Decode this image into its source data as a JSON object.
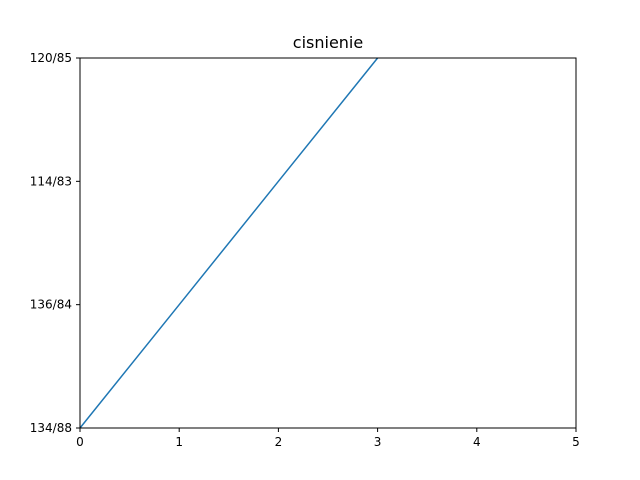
{
  "chart_data": {
    "type": "line",
    "title": "cisnienie",
    "xlabel": "",
    "ylabel": "",
    "x": [
      0,
      1,
      2,
      3
    ],
    "categories": [
      "134/88",
      "136/84",
      "114/83",
      "120/85"
    ],
    "series": [
      {
        "values": [
          "134/88",
          "136/84",
          "114/83",
          "120/85"
        ],
        "color": "#1f77b4"
      }
    ],
    "xlim": [
      0,
      5
    ],
    "xticks": [
      "0",
      "1",
      "2",
      "3",
      "4",
      "5"
    ],
    "grid": false
  }
}
